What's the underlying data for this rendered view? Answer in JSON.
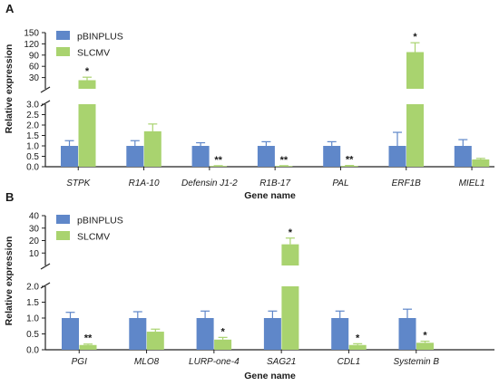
{
  "colors": {
    "pBINPLUS": "#5f87c9",
    "SLCMV": "#a9d36f",
    "error": "#999999"
  },
  "chart_data": [
    {
      "panel": "A",
      "type": "bar",
      "ylabel": "Relative expression",
      "xlabel": "Gene name",
      "y_ticks_upper": [
        "150",
        "120",
        "90",
        "60",
        "30"
      ],
      "y_ticks_lower": [
        "3.0",
        "2.5",
        "2.0",
        "1.5",
        "1.0",
        "0.5",
        "0.0"
      ],
      "categories": [
        "STPK",
        "R1A-10",
        "Defensin J1-2",
        "R1B-17",
        "PAL",
        "ERF1B",
        "MIEL1"
      ],
      "series": [
        {
          "name": "pBINPLUS",
          "values": [
            1.0,
            1.0,
            1.0,
            1.0,
            1.0,
            1.0,
            1.0
          ],
          "errors": [
            0.25,
            0.25,
            0.15,
            0.2,
            0.2,
            0.65,
            0.3
          ]
        },
        {
          "name": "SLCMV",
          "values": [
            23,
            1.7,
            0.03,
            0.03,
            0.04,
            98,
            0.35
          ],
          "errors": [
            8,
            0.35,
            0.02,
            0.02,
            0.02,
            25,
            0.05
          ]
        }
      ],
      "significance": [
        "*",
        "",
        "**",
        "**",
        "**",
        "*",
        ""
      ],
      "ylim_upper": [
        0,
        150
      ],
      "ylim_lower": [
        0,
        3.0
      ]
    },
    {
      "panel": "B",
      "type": "bar",
      "ylabel": "Relative expression",
      "xlabel": "Gene name",
      "y_ticks_upper": [
        "40",
        "30",
        "20",
        "10"
      ],
      "y_ticks_lower": [
        "2.0",
        "1.5",
        "1.0",
        "0.5",
        "0.0"
      ],
      "categories": [
        "PGI",
        "MLO8",
        "LURP-one-4",
        "SAG21",
        "CDL1",
        "Systemin B"
      ],
      "series": [
        {
          "name": "pBINPLUS",
          "values": [
            1.0,
            1.0,
            1.0,
            1.0,
            1.0,
            1.0
          ],
          "errors": [
            0.18,
            0.2,
            0.22,
            0.22,
            0.22,
            0.28
          ]
        },
        {
          "name": "SLCMV",
          "values": [
            0.15,
            0.57,
            0.32,
            17,
            0.15,
            0.22
          ],
          "errors": [
            0.03,
            0.08,
            0.07,
            5,
            0.04,
            0.05
          ]
        }
      ],
      "significance": [
        "**",
        "",
        "*",
        "*",
        "*",
        "*"
      ],
      "ylim_upper": [
        0,
        40
      ],
      "ylim_lower": [
        0,
        2.0
      ]
    }
  ]
}
